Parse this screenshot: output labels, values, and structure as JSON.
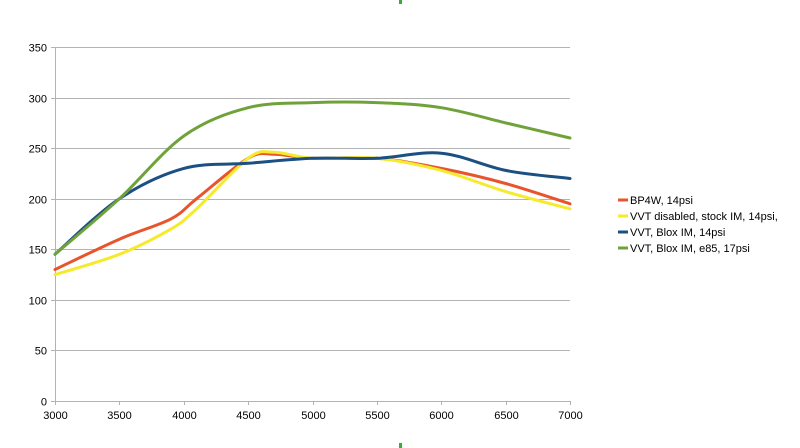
{
  "chart_data": {
    "type": "line",
    "title": "",
    "xlabel": "",
    "ylabel": "",
    "xlim": [
      3000,
      7000
    ],
    "ylim": [
      0,
      350
    ],
    "x_ticks": [
      3000,
      3500,
      4000,
      4500,
      5000,
      5500,
      6000,
      6500,
      7000
    ],
    "y_ticks": [
      0,
      50,
      100,
      150,
      200,
      250,
      300,
      350
    ],
    "grid": "horizontal",
    "legend_position": "right",
    "series": [
      {
        "name": "BP4W, 14psi",
        "color": "#e8552c",
        "x": [
          3000,
          3500,
          3900,
          4100,
          4500,
          4700,
          5000,
          5500,
          6000,
          6500,
          7000
        ],
        "values": [
          130,
          160,
          180,
          200,
          240,
          244,
          240,
          240,
          230,
          215,
          195
        ]
      },
      {
        "name": "VVT disabled, stock IM, 14psi,",
        "color": "#f5ea2c",
        "x": [
          3000,
          3500,
          3900,
          4100,
          4500,
          4700,
          5000,
          5500,
          6000,
          6500,
          7000
        ],
        "values": [
          125,
          145,
          170,
          190,
          240,
          246,
          240,
          240,
          228,
          207,
          190
        ]
      },
      {
        "name": "VVT, Blox IM, 14psi",
        "color": "#1c4f82",
        "x": [
          3000,
          3500,
          4000,
          4500,
          5000,
          5500,
          6000,
          6500,
          7000
        ],
        "values": [
          145,
          200,
          230,
          235,
          240,
          240,
          245,
          228,
          220
        ]
      },
      {
        "name": "VVT, Blox IM, e85, 17psi",
        "color": "#6fa33a",
        "x": [
          3000,
          3500,
          4000,
          4500,
          5000,
          5500,
          6000,
          6500,
          7000
        ],
        "values": [
          145,
          200,
          262,
          290,
          295,
          295,
          290,
          275,
          260
        ]
      }
    ]
  }
}
